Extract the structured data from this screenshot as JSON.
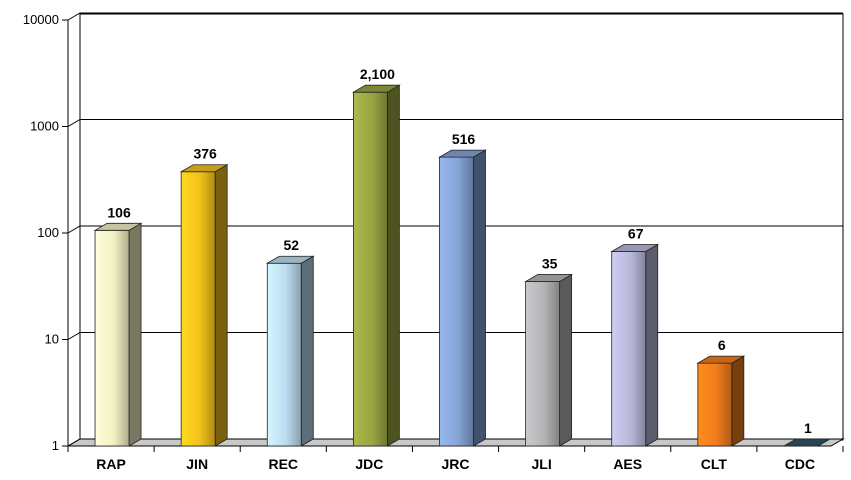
{
  "chart_data": {
    "type": "bar",
    "title": "",
    "xlabel": "",
    "ylabel": "",
    "y_scale": "log",
    "ylim": [
      1,
      10000
    ],
    "grid": true,
    "y_ticks": [
      "1",
      "10",
      "100",
      "1000",
      "10000"
    ],
    "categories": [
      "RAP",
      "JIN",
      "REC",
      "JDC",
      "JRC",
      "JLI",
      "AES",
      "CLT",
      "CDC"
    ],
    "values": [
      106,
      376,
      52,
      2100,
      516,
      35,
      67,
      6,
      1
    ],
    "value_labels": [
      "106",
      "376",
      "52",
      "2,100",
      "516",
      "35",
      "67",
      "6",
      "1"
    ],
    "colors": [
      "#f3efc4",
      "#f2c21c",
      "#bcdcef",
      "#9aa542",
      "#86a4d6",
      "#b4b4b6",
      "#b8b8da",
      "#f07d1c",
      "#2e5468"
    ]
  }
}
